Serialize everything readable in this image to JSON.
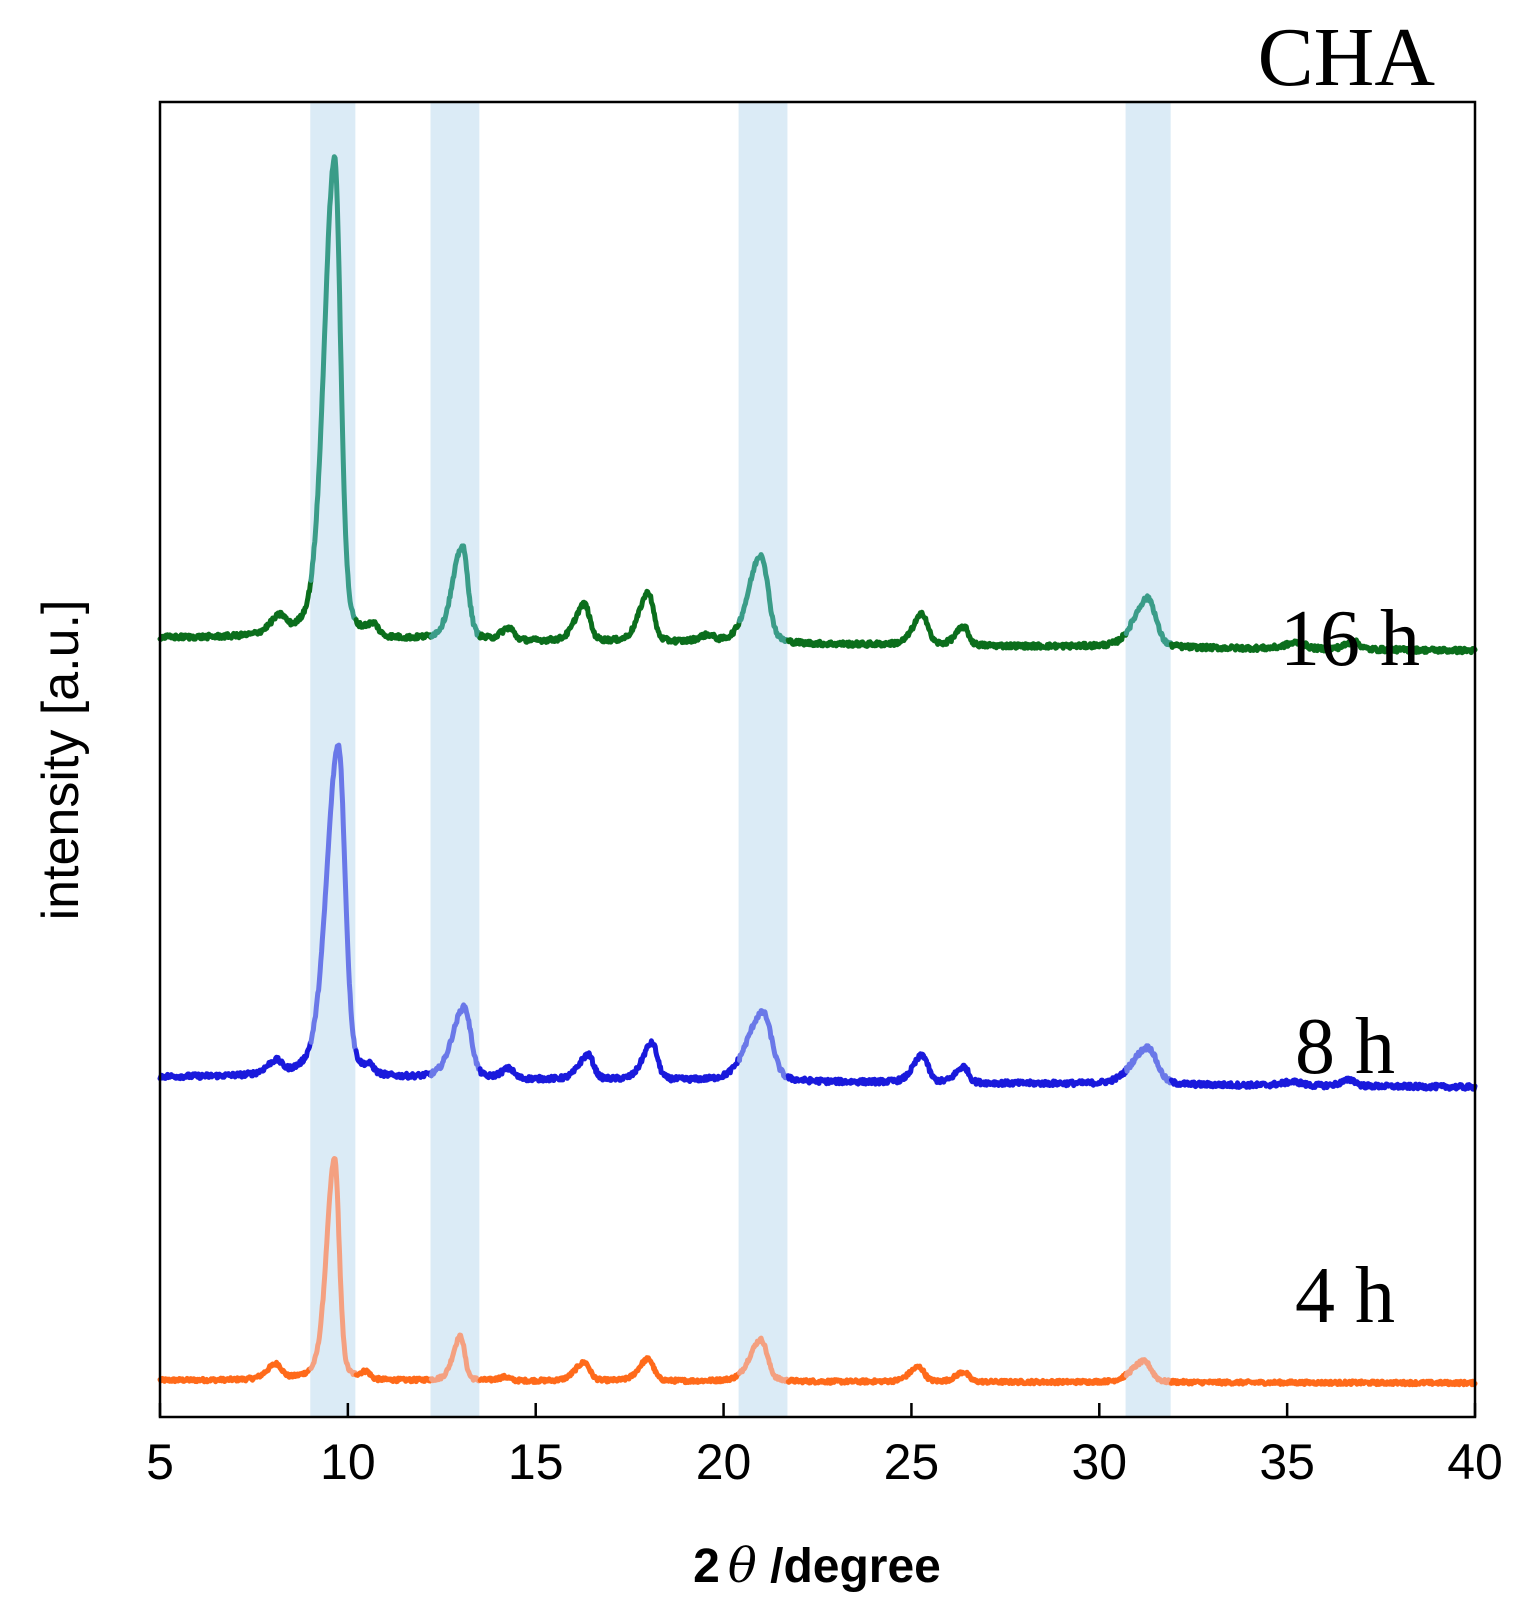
{
  "chart_data": {
    "type": "line",
    "title": "CHA",
    "xlabel_prefix": "2",
    "xlabel_symbol": "θ",
    "xlabel_suffix": " /degree",
    "ylabel": "intensity [a.u.]",
    "xlim": [
      5,
      40
    ],
    "ylim": [
      0,
      100
    ],
    "x_ticks": [
      {
        "value": 5,
        "label": "5"
      },
      {
        "value": 10,
        "label": "10"
      },
      {
        "value": 15,
        "label": "15"
      },
      {
        "value": 20,
        "label": "20"
      },
      {
        "value": 25,
        "label": "25"
      },
      {
        "value": 30,
        "label": "30"
      },
      {
        "value": 35,
        "label": "35"
      },
      {
        "value": 40,
        "label": "40"
      }
    ],
    "highlight_bands": [
      {
        "x0": 9.0,
        "x1": 10.2
      },
      {
        "x0": 12.2,
        "x1": 13.5
      },
      {
        "x0": 20.4,
        "x1": 21.7
      },
      {
        "x0": 30.7,
        "x1": 31.9
      }
    ],
    "band_color": "#dbebf6",
    "series": [
      {
        "name": "4 h",
        "label": "4 h",
        "color": "#ff6a1a",
        "highlight_color": "#f4a080",
        "baseline": [
          [
            5,
            0.2
          ],
          [
            40,
            0.0
          ]
        ],
        "noise": 0.15,
        "peaks": [
          {
            "x": 8.1,
            "h": 1.2,
            "w": 0.15
          },
          {
            "x": 9.65,
            "h": 18.0,
            "w": 0.13
          },
          {
            "x": 10.5,
            "h": 0.6,
            "w": 0.1
          },
          {
            "x": 13.0,
            "h": 3.6,
            "w": 0.12
          },
          {
            "x": 14.2,
            "h": 0.3,
            "w": 0.12
          },
          {
            "x": 16.3,
            "h": 1.5,
            "w": 0.15
          },
          {
            "x": 18.0,
            "h": 1.8,
            "w": 0.15
          },
          {
            "x": 21.0,
            "h": 3.4,
            "w": 0.18
          },
          {
            "x": 25.2,
            "h": 1.2,
            "w": 0.15
          },
          {
            "x": 26.4,
            "h": 0.8,
            "w": 0.13
          },
          {
            "x": 31.2,
            "h": 1.7,
            "w": 0.2
          }
        ]
      },
      {
        "name": "8 h",
        "label": "8 h",
        "color": "#1a1adc",
        "highlight_color": "#6a78e8",
        "baseline": [
          [
            5,
            24.8
          ],
          [
            40,
            24.0
          ]
        ],
        "noise": 0.2,
        "peaks": [
          {
            "x": 8.1,
            "h": 1.0,
            "w": 0.15
          },
          {
            "x": 9.75,
            "h": 27.0,
            "w": 0.19
          },
          {
            "x": 10.6,
            "h": 0.6,
            "w": 0.1
          },
          {
            "x": 13.1,
            "h": 5.8,
            "w": 0.19
          },
          {
            "x": 14.3,
            "h": 0.8,
            "w": 0.13
          },
          {
            "x": 16.4,
            "h": 2.0,
            "w": 0.15
          },
          {
            "x": 18.1,
            "h": 3.0,
            "w": 0.15
          },
          {
            "x": 21.05,
            "h": 5.6,
            "w": 0.25
          },
          {
            "x": 25.3,
            "h": 2.2,
            "w": 0.15
          },
          {
            "x": 26.4,
            "h": 1.3,
            "w": 0.13
          },
          {
            "x": 31.3,
            "h": 3.0,
            "w": 0.25
          },
          {
            "x": 35.2,
            "h": 0.3,
            "w": 0.2
          },
          {
            "x": 36.7,
            "h": 0.5,
            "w": 0.15
          }
        ]
      },
      {
        "name": "16 h",
        "label": "16 h",
        "color": "#0b6e1c",
        "highlight_color": "#3a9c88",
        "baseline": [
          [
            5,
            60.4
          ],
          [
            40,
            59.4
          ]
        ],
        "noise": 0.2,
        "peaks": [
          {
            "x": 8.2,
            "h": 1.3,
            "w": 0.16
          },
          {
            "x": 9.65,
            "h": 39.0,
            "w": 0.17
          },
          {
            "x": 10.7,
            "h": 0.9,
            "w": 0.12
          },
          {
            "x": 13.05,
            "h": 7.6,
            "w": 0.16
          },
          {
            "x": 14.3,
            "h": 1.0,
            "w": 0.13
          },
          {
            "x": 16.3,
            "h": 3.0,
            "w": 0.15
          },
          {
            "x": 18.0,
            "h": 4.0,
            "w": 0.15
          },
          {
            "x": 19.6,
            "h": 0.5,
            "w": 0.15
          },
          {
            "x": 21.0,
            "h": 7.2,
            "w": 0.2
          },
          {
            "x": 25.3,
            "h": 2.5,
            "w": 0.15
          },
          {
            "x": 26.4,
            "h": 1.5,
            "w": 0.13
          },
          {
            "x": 31.3,
            "h": 4.0,
            "w": 0.22
          },
          {
            "x": 35.3,
            "h": 0.5,
            "w": 0.2
          },
          {
            "x": 36.8,
            "h": 0.6,
            "w": 0.15
          }
        ]
      }
    ]
  },
  "colors": {
    "axis": "#000000",
    "background": "#ffffff"
  }
}
